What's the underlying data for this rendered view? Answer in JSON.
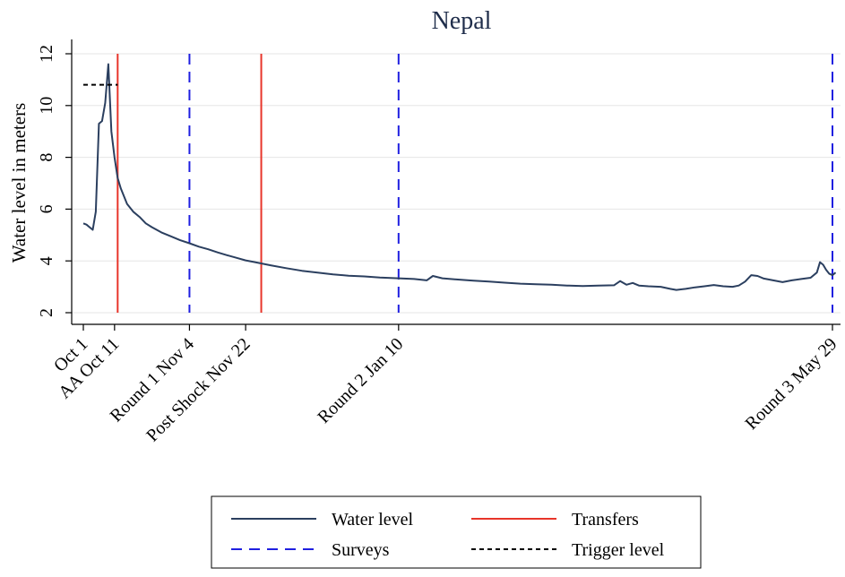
{
  "chart_data": {
    "type": "line",
    "title": "Nepal",
    "xlabel": "",
    "ylabel": "Water level in meters",
    "ylim": [
      2,
      12
    ],
    "yticks": [
      2,
      4,
      6,
      8,
      10,
      12
    ],
    "grid": true,
    "legend_position": "bottom",
    "x_axis": {
      "type": "date",
      "start": "Oct 1",
      "end": "May 29",
      "ticks": [
        {
          "day": 0,
          "label": "Oct 1"
        },
        {
          "day": 10,
          "label": "AA Oct 11"
        },
        {
          "day": 34,
          "label": "Round 1 Nov 4"
        },
        {
          "day": 52,
          "label": "Post Shock Nov 22"
        },
        {
          "day": 101,
          "label": "Round 2 Jan 10"
        },
        {
          "day": 240,
          "label": "Round 3 May 29"
        }
      ]
    },
    "series": [
      {
        "name": "Water level",
        "color": "#2b3f5f",
        "style": "solid",
        "points": [
          [
            0,
            5.45
          ],
          [
            1,
            5.4
          ],
          [
            2,
            5.3
          ],
          [
            3,
            5.2
          ],
          [
            4,
            5.9
          ],
          [
            5,
            9.3
          ],
          [
            6,
            9.4
          ],
          [
            7,
            10.1
          ],
          [
            8,
            11.6
          ],
          [
            9,
            9.0
          ],
          [
            10,
            8.0
          ],
          [
            11,
            7.2
          ],
          [
            12,
            6.8
          ],
          [
            14,
            6.2
          ],
          [
            16,
            5.9
          ],
          [
            18,
            5.7
          ],
          [
            20,
            5.45
          ],
          [
            22,
            5.3
          ],
          [
            25,
            5.1
          ],
          [
            28,
            4.95
          ],
          [
            31,
            4.8
          ],
          [
            34,
            4.68
          ],
          [
            37,
            4.55
          ],
          [
            40,
            4.45
          ],
          [
            43,
            4.33
          ],
          [
            46,
            4.22
          ],
          [
            49,
            4.12
          ],
          [
            52,
            4.02
          ],
          [
            55,
            3.95
          ],
          [
            60,
            3.83
          ],
          [
            65,
            3.72
          ],
          [
            70,
            3.62
          ],
          [
            75,
            3.55
          ],
          [
            80,
            3.48
          ],
          [
            85,
            3.43
          ],
          [
            90,
            3.4
          ],
          [
            95,
            3.36
          ],
          [
            101,
            3.33
          ],
          [
            106,
            3.3
          ],
          [
            110,
            3.25
          ],
          [
            112,
            3.42
          ],
          [
            115,
            3.33
          ],
          [
            120,
            3.28
          ],
          [
            125,
            3.24
          ],
          [
            130,
            3.2
          ],
          [
            135,
            3.16
          ],
          [
            140,
            3.12
          ],
          [
            145,
            3.1
          ],
          [
            150,
            3.08
          ],
          [
            155,
            3.05
          ],
          [
            160,
            3.03
          ],
          [
            165,
            3.05
          ],
          [
            170,
            3.06
          ],
          [
            172,
            3.22
          ],
          [
            174,
            3.08
          ],
          [
            176,
            3.15
          ],
          [
            178,
            3.05
          ],
          [
            181,
            3.02
          ],
          [
            185,
            3.0
          ],
          [
            188,
            2.92
          ],
          [
            190,
            2.88
          ],
          [
            193,
            2.92
          ],
          [
            196,
            2.98
          ],
          [
            199,
            3.02
          ],
          [
            202,
            3.07
          ],
          [
            205,
            3.02
          ],
          [
            208,
            3.0
          ],
          [
            210,
            3.05
          ],
          [
            212,
            3.2
          ],
          [
            214,
            3.45
          ],
          [
            216,
            3.42
          ],
          [
            218,
            3.32
          ],
          [
            221,
            3.25
          ],
          [
            224,
            3.18
          ],
          [
            227,
            3.25
          ],
          [
            230,
            3.3
          ],
          [
            233,
            3.35
          ],
          [
            235,
            3.55
          ],
          [
            236,
            3.95
          ],
          [
            237,
            3.85
          ],
          [
            238,
            3.65
          ],
          [
            239,
            3.5
          ],
          [
            240,
            3.45
          ],
          [
            241,
            3.55
          ]
        ]
      },
      {
        "name": "Transfers",
        "color": "#e8352a",
        "style": "solid",
        "vertical_lines_at_day": [
          11,
          57
        ]
      },
      {
        "name": "Surveys",
        "color": "#1f1fe0",
        "style": "dashed",
        "vertical_lines_at_day": [
          34,
          101,
          240
        ]
      },
      {
        "name": "Trigger level",
        "color": "#000000",
        "style": "dotted",
        "y": 10.8,
        "x_range_days": [
          0,
          11
        ]
      }
    ]
  }
}
